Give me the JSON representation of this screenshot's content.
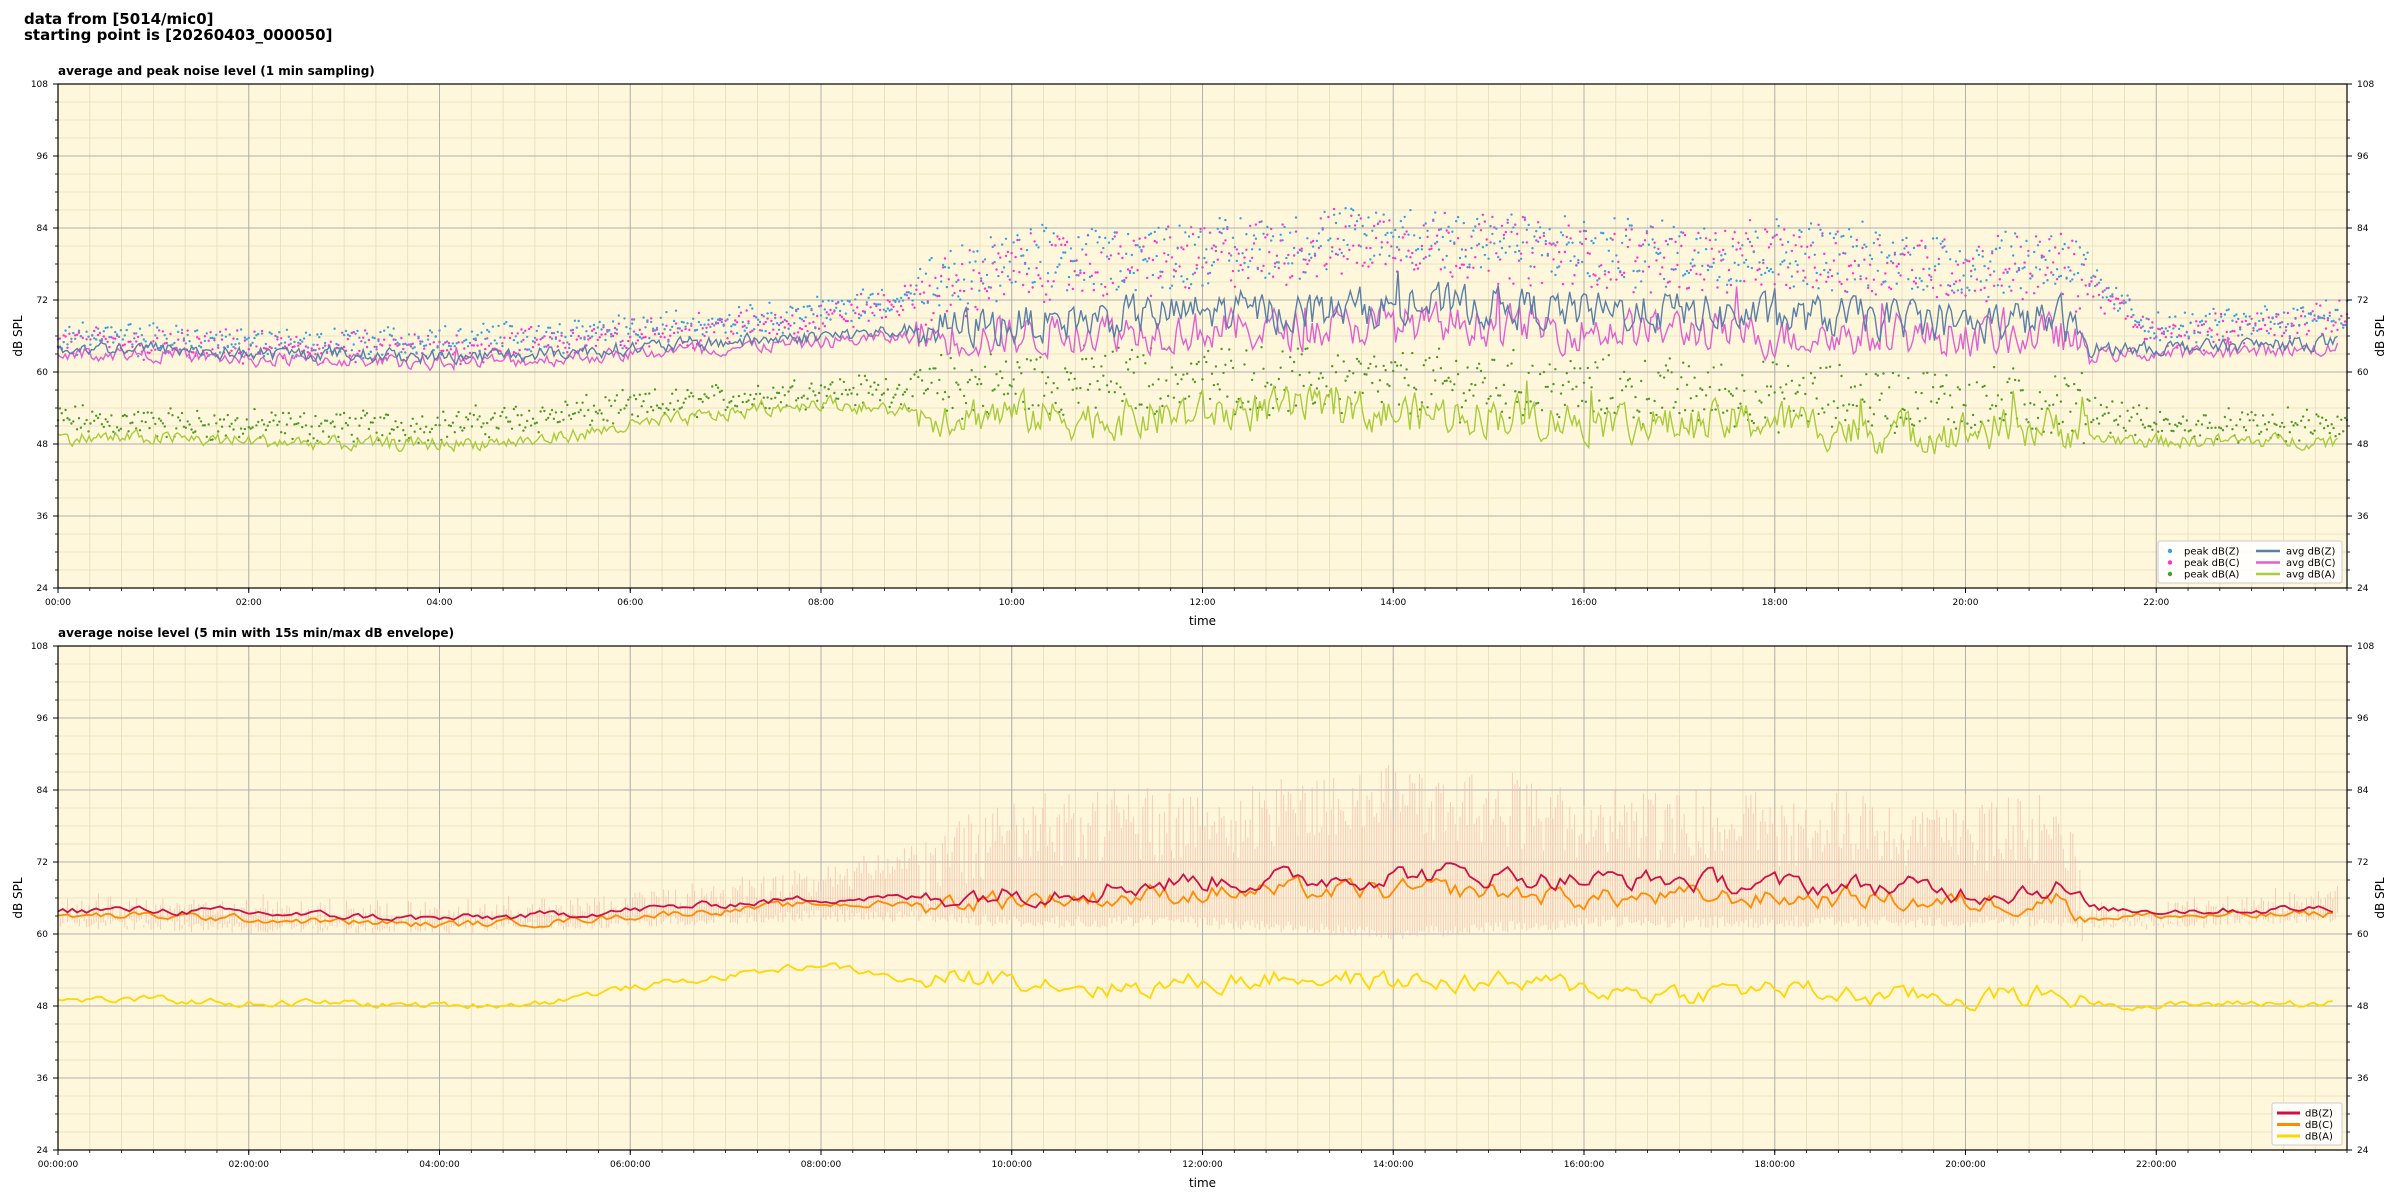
{
  "header": {
    "line1": "data from [5014/mic0]",
    "line2": "starting point is [20260403_000050]"
  },
  "colors": {
    "plot_bg": "#fef7dc",
    "grid_major": "#b0b0b0",
    "grid_minor": "#e6dcb8",
    "peak_z": "#3aa0e0",
    "peak_c": "#ff33cc",
    "peak_a": "#4c9a2a",
    "avg_z": "#5a7fa8",
    "avg_c": "#e060d0",
    "avg_a": "#a8cc3a",
    "db_z": "#cc1144",
    "db_c": "#ff8c00",
    "db_a": "#ffd700",
    "envelope": "#f5b9a6"
  },
  "chart_data": [
    {
      "type": "line",
      "title": "average and peak noise level (1 min sampling)",
      "xlabel": "time",
      "ylabel": "dB SPL",
      "ylim": [
        24,
        108
      ],
      "xlim_hours": [
        0,
        24
      ],
      "yticks": [
        "24",
        "36",
        "48",
        "60",
        "72",
        "84",
        "96",
        "108"
      ],
      "xticks": [
        "00:00",
        "02:00",
        "04:00",
        "06:00",
        "08:00",
        "10:00",
        "12:00",
        "14:00",
        "16:00",
        "18:00",
        "20:00",
        "22:00"
      ],
      "grid": true,
      "legend_position": "lower-right",
      "legend": [
        "peak dB(Z)",
        "peak dB(C)",
        "peak dB(A)",
        "avg dB(Z)",
        "avg dB(C)",
        "avg dB(A)"
      ],
      "series": [
        {
          "name": "avg dB(Z)",
          "hours": [
            0,
            1,
            2,
            3,
            4,
            5,
            6,
            7,
            8,
            9,
            10,
            11,
            12,
            13,
            14,
            15,
            16,
            17,
            18,
            19,
            20,
            21,
            21.3,
            22,
            23,
            24
          ],
          "values": [
            64,
            64,
            63,
            63,
            62.5,
            63,
            64,
            65,
            66,
            67,
            68,
            69,
            70,
            70,
            71,
            71,
            70,
            70,
            69,
            69,
            68,
            69,
            64,
            64,
            64.5,
            65
          ]
        },
        {
          "name": "avg dB(C)",
          "hours": [
            0,
            1,
            2,
            3,
            4,
            5,
            6,
            7,
            8,
            9,
            10,
            11,
            12,
            13,
            14,
            15,
            16,
            17,
            18,
            19,
            20,
            21,
            21.3,
            22,
            23,
            24
          ],
          "values": [
            63,
            63,
            62,
            62,
            61.5,
            62,
            63,
            64,
            65,
            66,
            66,
            67,
            67,
            67,
            68,
            68,
            67,
            67,
            66,
            66,
            66,
            66,
            63,
            63,
            63.5,
            64
          ]
        },
        {
          "name": "avg dB(A)",
          "hours": [
            0,
            1,
            2,
            3,
            4,
            5,
            6,
            7,
            8,
            9,
            10,
            11,
            12,
            13,
            14,
            15,
            16,
            17,
            18,
            19,
            20,
            21,
            21.3,
            22,
            23,
            24
          ],
          "values": [
            49,
            49,
            48.5,
            48,
            48,
            48.5,
            51,
            53,
            55,
            53,
            53,
            52,
            53,
            54,
            53,
            53,
            52,
            51,
            52,
            50,
            50,
            51,
            49,
            48.5,
            48.5,
            48.5
          ]
        },
        {
          "name": "peak dB(Z)",
          "hours": [
            0,
            2,
            4,
            6,
            8,
            9,
            10,
            12,
            14,
            15,
            16,
            18,
            20,
            21,
            22,
            24
          ],
          "values": [
            66,
            65,
            65,
            67,
            70,
            73,
            78,
            80,
            83,
            82,
            80,
            80,
            78,
            79,
            67,
            70
          ]
        },
        {
          "name": "peak dB(C)",
          "hours": [
            0,
            2,
            4,
            6,
            8,
            9,
            10,
            12,
            14,
            15,
            16,
            18,
            20,
            21,
            22,
            24
          ],
          "values": [
            65,
            64,
            64,
            66,
            69,
            72,
            77,
            79,
            82,
            81,
            79,
            79,
            77,
            78,
            66,
            69
          ]
        },
        {
          "name": "peak dB(A)",
          "hours": [
            0,
            2,
            4,
            6,
            8,
            9,
            10,
            12,
            14,
            15,
            16,
            18,
            20,
            21,
            22,
            24
          ],
          "values": [
            52,
            51,
            51,
            54,
            57,
            57,
            58,
            59,
            58,
            58,
            57,
            56,
            55,
            55,
            51,
            51
          ]
        }
      ]
    },
    {
      "type": "line",
      "title": "average noise level (5 min with 15s min/max dB envelope)",
      "xlabel": "time",
      "ylabel": "dB SPL",
      "ylim": [
        24,
        108
      ],
      "xlim_hours": [
        0,
        24
      ],
      "yticks": [
        "24",
        "36",
        "48",
        "60",
        "72",
        "84",
        "96",
        "108"
      ],
      "xticks": [
        "00:00:00",
        "02:00:00",
        "04:00:00",
        "06:00:00",
        "08:00:00",
        "10:00:00",
        "12:00:00",
        "14:00:00",
        "16:00:00",
        "18:00:00",
        "20:00:00",
        "22:00:00"
      ],
      "grid": true,
      "legend_position": "lower-right",
      "legend": [
        "dB(Z)",
        "dB(C)",
        "dB(A)"
      ],
      "series": [
        {
          "name": "dB(Z)",
          "hours": [
            0,
            1,
            2,
            3,
            4,
            5,
            6,
            7,
            8,
            9,
            10,
            11,
            12,
            13,
            14,
            15,
            16,
            17,
            18,
            19,
            20,
            21,
            21.3,
            22,
            23,
            24
          ],
          "values": [
            64,
            64,
            63.5,
            63,
            62.5,
            63,
            64,
            65,
            66,
            66,
            67,
            68,
            69,
            69,
            70,
            70,
            69,
            69,
            68,
            68,
            67,
            68,
            64,
            64,
            64,
            64.5
          ]
        },
        {
          "name": "dB(C)",
          "hours": [
            0,
            1,
            2,
            3,
            4,
            5,
            6,
            7,
            8,
            9,
            10,
            11,
            12,
            13,
            14,
            15,
            16,
            17,
            18,
            19,
            20,
            21,
            21.3,
            22,
            23,
            24
          ],
          "values": [
            63,
            63,
            62.5,
            62,
            61.5,
            62,
            63,
            64,
            65,
            65,
            66,
            66,
            67,
            67,
            67,
            67,
            66,
            66,
            66,
            66,
            65,
            66,
            63,
            63,
            63,
            63.5
          ]
        },
        {
          "name": "dB(A)",
          "hours": [
            0,
            1,
            2,
            3,
            4,
            5,
            6,
            7,
            8,
            9,
            10,
            11,
            12,
            13,
            14,
            15,
            16,
            17,
            18,
            19,
            20,
            21,
            21.3,
            22,
            23,
            24
          ],
          "values": [
            49,
            49,
            48.5,
            48.5,
            48,
            48.5,
            51,
            53,
            55,
            52,
            53,
            51,
            52,
            53,
            52,
            52,
            51,
            50,
            51,
            49.5,
            49.5,
            50,
            48.5,
            48,
            48.5,
            48.5
          ]
        },
        {
          "name": "envelope max",
          "hours": [
            0,
            2,
            4,
            6,
            8,
            9,
            10,
            12,
            14,
            15,
            16,
            18,
            20,
            21,
            21.3,
            22,
            24
          ],
          "values": [
            67,
            67,
            66,
            68,
            72,
            76,
            84,
            85,
            89,
            88,
            86,
            85,
            84,
            85,
            66,
            66,
            69
          ]
        },
        {
          "name": "envelope min",
          "hours": [
            0,
            2,
            4,
            6,
            8,
            9,
            10,
            12,
            14,
            15,
            16,
            18,
            20,
            21,
            21.3,
            22,
            24
          ],
          "values": [
            61,
            60,
            60,
            61,
            62,
            62,
            61,
            61,
            59,
            60,
            61,
            61,
            61,
            61,
            61,
            61,
            62
          ]
        }
      ]
    }
  ]
}
